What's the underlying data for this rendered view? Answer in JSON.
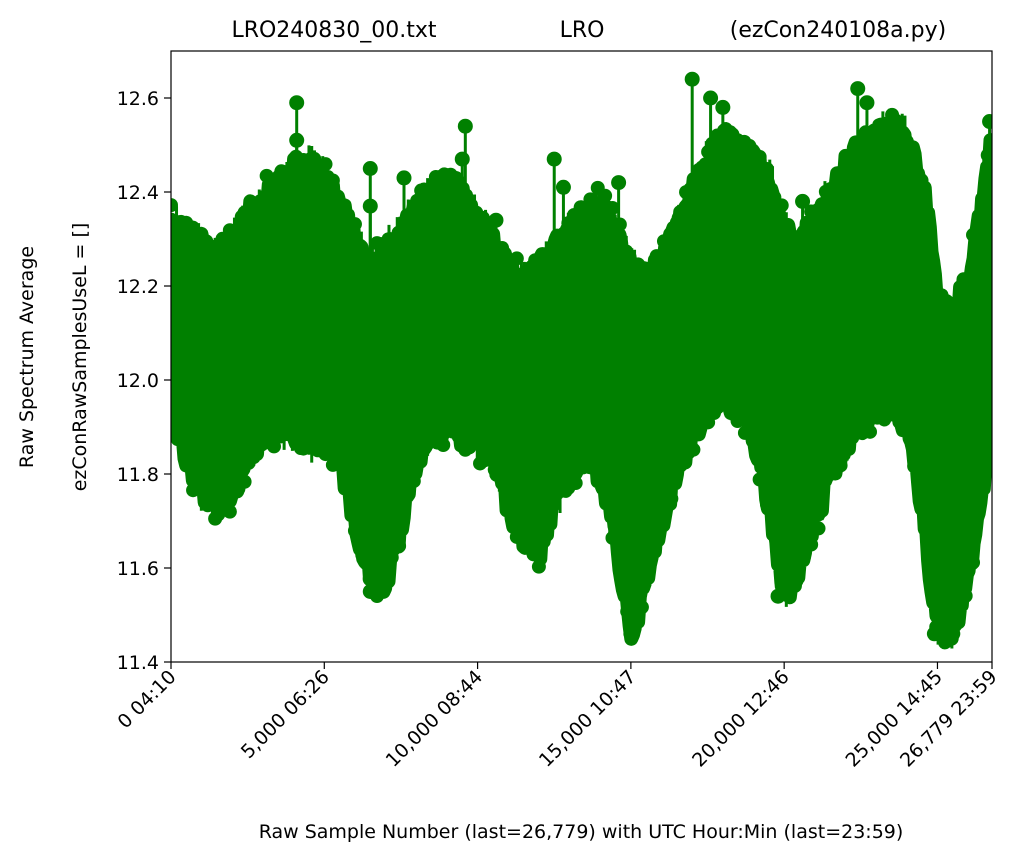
{
  "chart_data": {
    "type": "line",
    "title_left": "LRO240830_00.txt",
    "title_center": "LRO",
    "title_right": "(ezCon240108a.py)",
    "xlabel": "Raw Sample Number (last=26,779) with UTC Hour:Min (last=23:59)",
    "ylabel_line1": "Raw Spectrum Average",
    "ylabel_line2": "ezConRawSamplesUseL = []",
    "xlim": [
      0,
      26779
    ],
    "ylim": [
      11.4,
      12.7
    ],
    "x_ticks": [
      {
        "value": 0,
        "label": "0  04:10"
      },
      {
        "value": 5000,
        "label": "5,000  06:26"
      },
      {
        "value": 10000,
        "label": "10,000  08:44"
      },
      {
        "value": 15000,
        "label": "15,000  10:47"
      },
      {
        "value": 20000,
        "label": "20,000  12:46"
      },
      {
        "value": 25000,
        "label": "25,000  14:45"
      },
      {
        "value": 26779,
        "label": "26,779  23:59"
      }
    ],
    "y_ticks": [
      {
        "value": 11.4,
        "label": "11.4"
      },
      {
        "value": 11.6,
        "label": "11.6"
      },
      {
        "value": 11.8,
        "label": "11.8"
      },
      {
        "value": 12.0,
        "label": "12.0"
      },
      {
        "value": 12.2,
        "label": "12.2"
      },
      {
        "value": 12.4,
        "label": "12.4"
      },
      {
        "value": 12.6,
        "label": "12.6"
      }
    ],
    "series": [
      {
        "color": "#008000",
        "marker": "circle",
        "envelope": {
          "x": [
            0,
            500,
            1000,
            1500,
            2000,
            2500,
            3000,
            3500,
            4000,
            4500,
            5000,
            5500,
            6000,
            6500,
            7000,
            7500,
            8000,
            8500,
            9000,
            9500,
            10000,
            10500,
            11000,
            11500,
            12000,
            12500,
            13000,
            13500,
            14000,
            14500,
            15000,
            15500,
            16000,
            16500,
            17000,
            17500,
            18000,
            18500,
            19000,
            19500,
            20000,
            20500,
            21000,
            21500,
            22000,
            22500,
            23000,
            23500,
            24000,
            24500,
            25000,
            25500,
            26000,
            26500,
            26779
          ],
          "upper": [
            12.32,
            12.3,
            12.27,
            12.25,
            12.28,
            12.33,
            12.38,
            12.41,
            12.43,
            12.44,
            12.42,
            12.36,
            12.28,
            12.22,
            12.26,
            12.3,
            12.35,
            12.38,
            12.4,
            12.38,
            12.33,
            12.28,
            12.22,
            12.2,
            12.22,
            12.26,
            12.3,
            12.34,
            12.36,
            12.3,
            12.22,
            12.2,
            12.23,
            12.3,
            12.38,
            12.45,
            12.5,
            12.48,
            12.45,
            12.42,
            12.3,
            12.28,
            12.32,
            12.38,
            12.44,
            12.48,
            12.5,
            12.52,
            12.5,
            12.42,
            12.15,
            12.12,
            12.2,
            12.38,
            12.5
          ],
          "lower": [
            11.95,
            11.85,
            11.78,
            11.75,
            11.78,
            11.85,
            11.9,
            11.92,
            11.9,
            11.88,
            11.9,
            11.85,
            11.72,
            11.6,
            11.58,
            11.7,
            11.85,
            11.9,
            11.92,
            11.9,
            11.88,
            11.85,
            11.75,
            11.68,
            11.65,
            11.75,
            11.82,
            11.85,
            11.82,
            11.68,
            11.48,
            11.58,
            11.72,
            11.82,
            11.9,
            11.95,
            11.98,
            11.96,
            11.9,
            11.75,
            11.55,
            11.62,
            11.72,
            11.8,
            11.88,
            11.92,
            11.95,
            11.96,
            11.92,
            11.75,
            11.48,
            11.48,
            11.6,
            11.8,
            11.95
          ]
        },
        "spikes": [
          {
            "x": 4100,
            "y": 12.59
          },
          {
            "x": 4100,
            "y": 12.51
          },
          {
            "x": 6500,
            "y": 12.45
          },
          {
            "x": 6500,
            "y": 12.37
          },
          {
            "x": 7600,
            "y": 12.43
          },
          {
            "x": 9000,
            "y": 12.43
          },
          {
            "x": 9500,
            "y": 12.47
          },
          {
            "x": 9600,
            "y": 12.54
          },
          {
            "x": 10600,
            "y": 12.34
          },
          {
            "x": 12500,
            "y": 12.47
          },
          {
            "x": 12800,
            "y": 12.41
          },
          {
            "x": 17000,
            "y": 12.64
          },
          {
            "x": 17600,
            "y": 12.6
          },
          {
            "x": 18000,
            "y": 12.58
          },
          {
            "x": 22400,
            "y": 12.62
          },
          {
            "x": 22700,
            "y": 12.59
          },
          {
            "x": 21100,
            "y": 12.3
          },
          {
            "x": 26700,
            "y": 12.55
          },
          {
            "x": 3200,
            "y": 12.39
          },
          {
            "x": 9300,
            "y": 12.39
          },
          {
            "x": 14600,
            "y": 12.42
          },
          {
            "x": 15700,
            "y": 12.2
          },
          {
            "x": 20600,
            "y": 12.38
          }
        ],
        "dips": [
          {
            "x": 6500,
            "y": 11.55
          },
          {
            "x": 15000,
            "y": 11.46
          },
          {
            "x": 24900,
            "y": 11.46
          },
          {
            "x": 25500,
            "y": 11.46
          },
          {
            "x": 19800,
            "y": 11.54
          },
          {
            "x": 9400,
            "y": 11.88
          }
        ]
      }
    ]
  }
}
